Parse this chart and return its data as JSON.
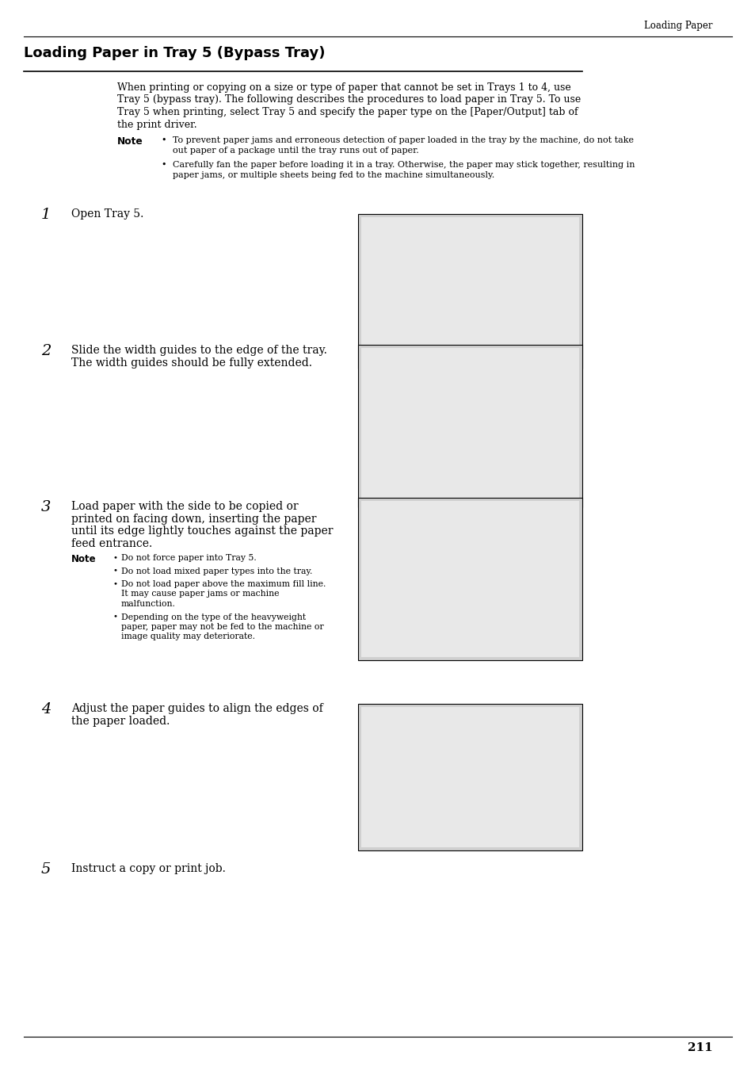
{
  "page_header_right": "Loading Paper",
  "section_title": "Loading Paper in Tray 5 (Bypass Tray)",
  "intro_text_lines": [
    "When printing or copying on a size or type of paper that cannot be set in Trays 1 to 4, use",
    "Tray 5 (bypass tray). The following describes the procedures to load paper in Tray 5. To use",
    "Tray 5 when printing, select Tray 5 and specify the paper type on the [Paper/Output] tab of",
    "the print driver."
  ],
  "note_label": "Note",
  "note_bullets": [
    [
      "To prevent paper jams and erroneous detection of paper loaded in the tray by the machine, do not take",
      "out paper of a package until the tray runs out of paper."
    ],
    [
      "Carefully fan the paper before loading it in a tray. Otherwise, the paper may stick together, resulting in",
      "paper jams, or multiple sheets being fed to the machine simultaneously."
    ]
  ],
  "step1_num": "1",
  "step1_text": "Open Tray 5.",
  "step1_img": [
    452,
    270,
    283,
    195
  ],
  "step2_num": "2",
  "step2_lines": [
    "Slide the width guides to the edge of the tray.",
    "The width guides should be fully extended."
  ],
  "step2_img": [
    452,
    435,
    283,
    205
  ],
  "step3_num": "3",
  "step3_lines": [
    "Load paper with the side to be copied or",
    "printed on facing down, inserting the paper",
    "until its edge lightly touches against the paper",
    "feed entrance."
  ],
  "step3_note_label": "Note",
  "step3_note_bullets": [
    [
      "Do not force paper into Tray 5."
    ],
    [
      "Do not load mixed paper types into the tray."
    ],
    [
      "Do not load paper above the maximum fill line.",
      "It may cause paper jams or machine",
      "malfunction."
    ],
    [
      "Depending on the type of the heavyweight",
      "paper, paper may not be fed to the machine or",
      "image quality may deteriorate."
    ]
  ],
  "step3_img": [
    452,
    628,
    283,
    205
  ],
  "step4_num": "4",
  "step4_lines": [
    "Adjust the paper guides to align the edges of",
    "the paper loaded."
  ],
  "step4_img": [
    452,
    888,
    283,
    185
  ],
  "step5_num": "5",
  "step5_text": "Instruct a copy or print job.",
  "page_number": "211",
  "bg_color": "#ffffff",
  "img_face": "#d0d0d0",
  "img_edge": "#000000",
  "line_color": "#000000"
}
